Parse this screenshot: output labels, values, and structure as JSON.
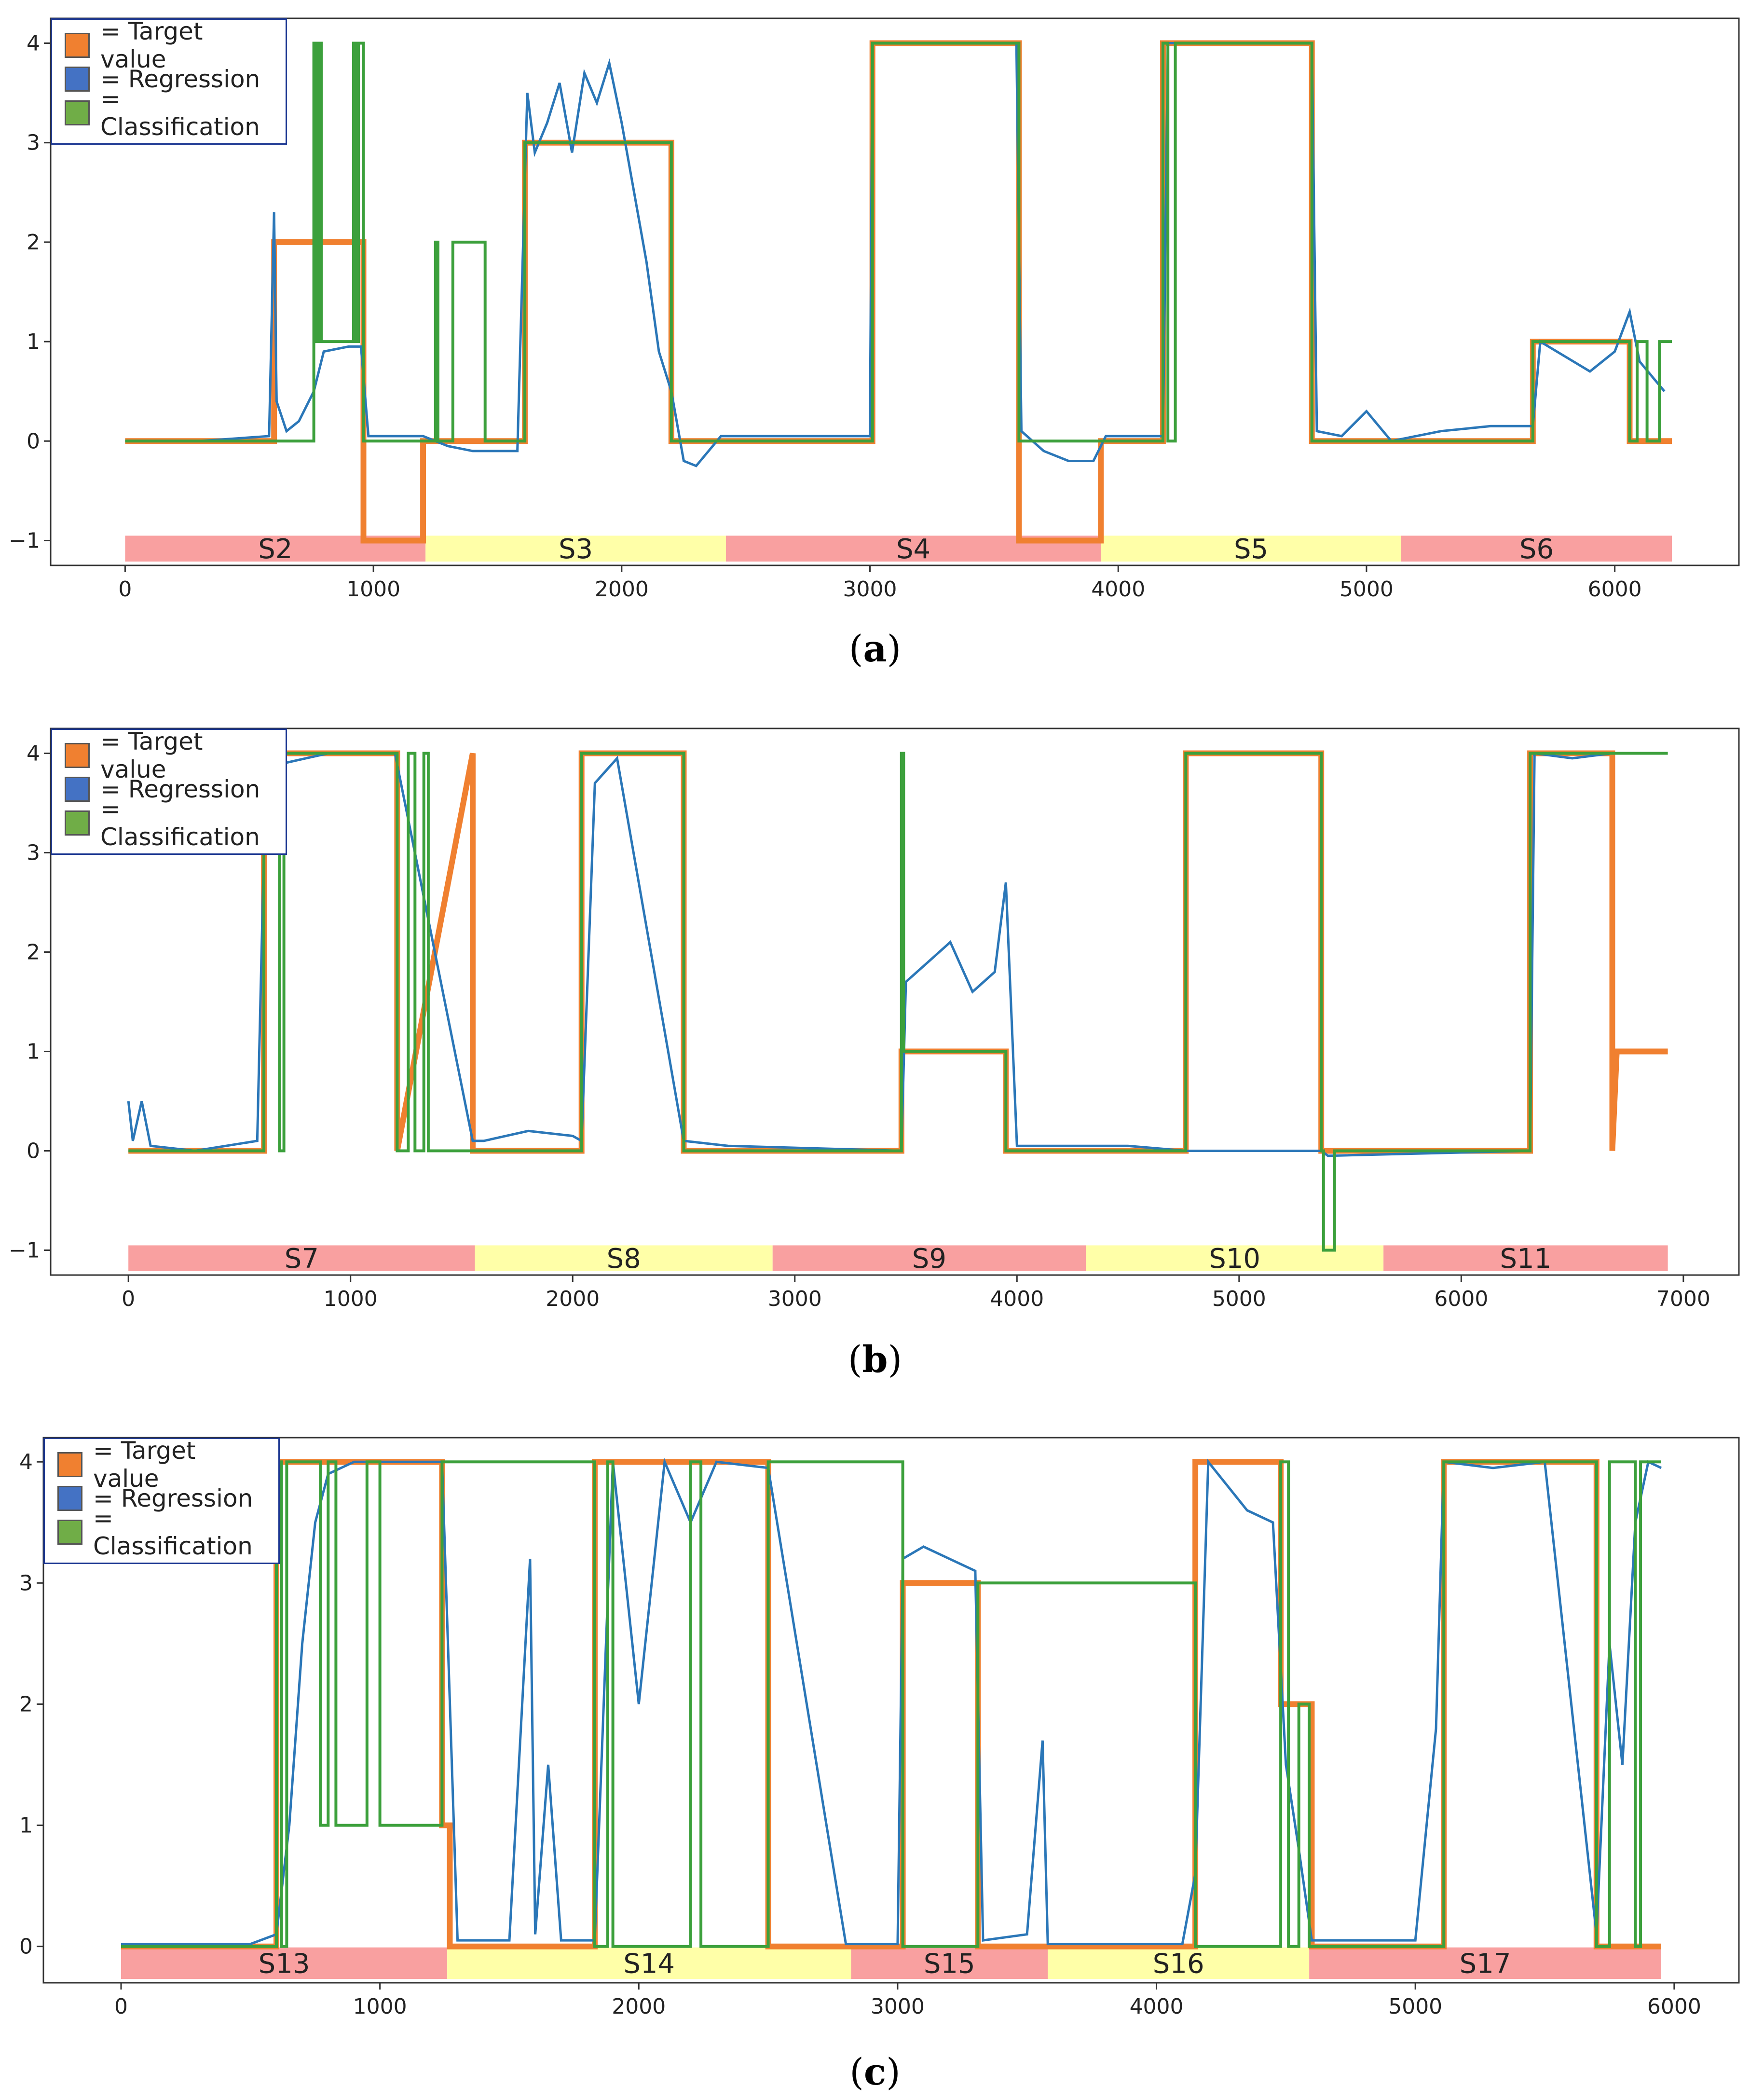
{
  "legend": {
    "target_label": "= Target value",
    "regression_label": "= Regression",
    "classification_label": "= Classification"
  },
  "colors": {
    "target": "#f08030",
    "regression": "#2b77b8",
    "classification": "#3ca03c",
    "session_red": "#f9a0a0",
    "session_yellow": "#ffffa8"
  },
  "panels": [
    {
      "caption_letter": "a",
      "chart_data": {
        "type": "line",
        "xlim": [
          -300,
          6500
        ],
        "ylim": [
          -1.25,
          4.25
        ],
        "xticks": [
          0,
          1000,
          2000,
          3000,
          4000,
          5000,
          6000
        ],
        "yticks": [
          -1,
          0,
          1,
          2,
          3,
          4
        ],
        "sessions": [
          {
            "label": "S2",
            "start": 0,
            "end": 1210,
            "color": "red"
          },
          {
            "label": "S3",
            "start": 1210,
            "end": 2420,
            "color": "yellow"
          },
          {
            "label": "S4",
            "start": 2420,
            "end": 3930,
            "color": "red"
          },
          {
            "label": "S5",
            "start": 3930,
            "end": 5140,
            "color": "yellow"
          },
          {
            "label": "S6",
            "start": 5140,
            "end": 6230,
            "color": "red"
          }
        ],
        "series": [
          {
            "name": "Target value",
            "x": [
              0,
              600,
              600,
              960,
              960,
              1200,
              1200,
              1610,
              1610,
              2200,
              2200,
              3010,
              3010,
              3600,
              3600,
              3930,
              3930,
              4180,
              4180,
              4780,
              4780,
              5670,
              5670,
              6060,
              6060,
              6230
            ],
            "y": [
              0,
              0,
              2,
              2,
              -1,
              -1,
              0,
              0,
              3,
              3,
              0,
              0,
              4,
              4,
              -1,
              -1,
              0,
              0,
              4,
              4,
              0,
              0,
              1,
              1,
              0,
              0
            ]
          },
          {
            "name": "Regression",
            "x": [
              0,
              300,
              580,
              600,
              610,
              650,
              700,
              760,
              800,
              900,
              950,
              980,
              1050,
              1200,
              1300,
              1400,
              1580,
              1620,
              1650,
              1700,
              1750,
              1800,
              1850,
              1900,
              1950,
              2000,
              2050,
              2100,
              2150,
              2200,
              2250,
              2300,
              2400,
              2500,
              2700,
              3000,
              3010,
              3100,
              3300,
              3590,
              3610,
              3700,
              3800,
              3900,
              3950,
              4180,
              4200,
              4400,
              4780,
              4800,
              4900,
              5000,
              5100,
              5300,
              5500,
              5670,
              5700,
              5800,
              5900,
              6000,
              6060,
              6100,
              6200
            ],
            "y": [
              0,
              0,
              0.05,
              2.3,
              0.4,
              0.1,
              0.2,
              0.5,
              0.9,
              0.95,
              0.95,
              0.05,
              0.05,
              0.05,
              -0.05,
              -0.1,
              -0.1,
              3.5,
              2.9,
              3.2,
              3.6,
              2.9,
              3.7,
              3.4,
              3.8,
              3.2,
              2.5,
              1.8,
              0.9,
              0.5,
              -0.2,
              -0.25,
              0.05,
              0.05,
              0.05,
              0.05,
              4,
              4,
              4,
              4,
              0.1,
              -0.1,
              -0.2,
              -0.2,
              0.05,
              0.05,
              4,
              4,
              4,
              0.1,
              0.05,
              0.3,
              0.0,
              0.1,
              0.15,
              0.15,
              1,
              0.85,
              0.7,
              0.9,
              1.3,
              0.8,
              0.5
            ]
          },
          {
            "name": "Classification",
            "x": [
              0,
              760,
              760,
              770,
              770,
              780,
              780,
              790,
              790,
              920,
              920,
              930,
              930,
              940,
              940,
              960,
              960,
              1250,
              1250,
              1260,
              1260,
              1320,
              1320,
              1450,
              1450,
              1610,
              1610,
              2200,
              2200,
              3010,
              3010,
              3600,
              3600,
              4180,
              4180,
              4200,
              4200,
              4230,
              4230,
              4780,
              4780,
              5670,
              5670,
              6060,
              6060,
              6090,
              6090,
              6130,
              6130,
              6180,
              6180,
              6230
            ],
            "y": [
              0,
              0,
              4,
              4,
              1,
              1,
              4,
              4,
              1,
              1,
              4,
              4,
              1,
              1,
              4,
              4,
              0,
              0,
              2,
              2,
              0,
              0,
              2,
              2,
              0,
              0,
              3,
              3,
              0,
              0,
              4,
              4,
              0,
              0,
              4,
              4,
              0,
              0,
              4,
              4,
              0,
              0,
              1,
              1,
              0,
              0,
              1,
              1,
              0,
              0,
              1,
              1
            ]
          }
        ]
      }
    },
    {
      "caption_letter": "b",
      "chart_data": {
        "type": "line",
        "xlim": [
          -350,
          7250
        ],
        "ylim": [
          -1.25,
          4.25
        ],
        "xticks": [
          0,
          1000,
          2000,
          3000,
          4000,
          5000,
          6000,
          7000
        ],
        "yticks": [
          -1,
          0,
          1,
          2,
          3,
          4
        ],
        "sessions": [
          {
            "label": "S7",
            "start": 0,
            "end": 1560,
            "color": "red"
          },
          {
            "label": "S8",
            "start": 1560,
            "end": 2900,
            "color": "yellow"
          },
          {
            "label": "S9",
            "start": 2900,
            "end": 4310,
            "color": "red"
          },
          {
            "label": "S10",
            "start": 4310,
            "end": 5650,
            "color": "yellow"
          },
          {
            "label": "S11",
            "start": 5650,
            "end": 6930,
            "color": "red"
          }
        ],
        "series": [
          {
            "name": "Target value",
            "x": [
              0,
              610,
              610,
              1210,
              1210,
              1550,
              1550,
              2040,
              2040,
              2500,
              2500,
              3480,
              3480,
              3950,
              3950,
              4760,
              4760,
              5370,
              5370,
              6310,
              6310,
              6680,
              6680,
              6700,
              6700,
              6930
            ],
            "y": [
              0,
              0,
              4,
              4,
              0,
              4,
              0,
              0,
              4,
              4,
              0,
              0,
              1,
              1,
              0,
              0,
              4,
              4,
              0,
              0,
              4,
              4,
              0,
              1,
              1,
              1
            ]
          },
          {
            "name": "Regression",
            "x": [
              0,
              20,
              60,
              100,
              300,
              580,
              620,
              700,
              900,
              1200,
              1550,
              1600,
              1800,
              2000,
              2040,
              2100,
              2200,
              2500,
              2700,
              3480,
              3500,
              3600,
              3700,
              3800,
              3900,
              3950,
              4000,
              4500,
              4760,
              5370,
              5400,
              6310,
              6330,
              6500,
              6680
            ],
            "y": [
              0.5,
              0.1,
              0.5,
              0.05,
              0,
              0.1,
              4,
              3.9,
              4,
              4,
              0.1,
              0.1,
              0.2,
              0.15,
              0.1,
              3.7,
              3.95,
              0.1,
              0.05,
              0,
              1.7,
              1.9,
              2.1,
              1.6,
              1.8,
              2.7,
              0.05,
              0.05,
              0,
              0,
              -0.05,
              0,
              4,
              3.95,
              4
            ]
          },
          {
            "name": "Classification",
            "x": [
              0,
              610,
              610,
              680,
              680,
              700,
              700,
              1210,
              1210,
              1260,
              1260,
              1290,
              1290,
              1330,
              1330,
              1350,
              1350,
              1550,
              1550,
              2040,
              2040,
              2500,
              2500,
              3480,
              3480,
              3490,
              3490,
              3950,
              3950,
              4760,
              4760,
              5370,
              5370,
              5380,
              5380,
              5430,
              5430,
              6310,
              6310,
              6930
            ],
            "y": [
              0,
              0,
              4,
              4,
              0,
              0,
              4,
              4,
              0,
              0,
              4,
              4,
              0,
              0,
              4,
              4,
              0,
              0,
              0,
              0,
              4,
              4,
              0,
              0,
              4,
              4,
              1,
              1,
              0,
              0,
              4,
              4,
              0,
              0,
              -1,
              -1,
              0,
              0,
              4,
              4
            ]
          }
        ]
      }
    },
    {
      "caption_letter": "c",
      "chart_data": {
        "type": "line",
        "xlim": [
          -300,
          6250
        ],
        "ylim": [
          -0.3,
          4.2
        ],
        "xticks": [
          0,
          1000,
          2000,
          3000,
          4000,
          5000,
          6000
        ],
        "yticks": [
          0,
          1,
          2,
          3,
          4
        ],
        "sessions": [
          {
            "label": "S13",
            "start": 0,
            "end": 1260,
            "color": "red"
          },
          {
            "label": "S14",
            "start": 1260,
            "end": 2820,
            "color": "yellow"
          },
          {
            "label": "S15",
            "start": 2820,
            "end": 3580,
            "color": "red"
          },
          {
            "label": "S16",
            "start": 3580,
            "end": 4590,
            "color": "yellow"
          },
          {
            "label": "S17",
            "start": 4590,
            "end": 5950,
            "color": "red"
          }
        ],
        "series": [
          {
            "name": "Target value",
            "x": [
              0,
              600,
              600,
              1240,
              1240,
              1270,
              1270,
              1830,
              1830,
              2500,
              2500,
              3020,
              3020,
              3310,
              3310,
              4150,
              4150,
              4480,
              4480,
              4600,
              4600,
              5110,
              5110,
              5700,
              5700,
              5950
            ],
            "y": [
              0,
              0,
              4,
              4,
              1,
              1,
              0,
              0,
              4,
              4,
              0,
              0,
              3,
              3,
              0,
              0,
              4,
              4,
              2,
              2,
              0,
              0,
              4,
              4,
              0,
              0
            ]
          },
          {
            "name": "Regression",
            "x": [
              0,
              500,
              600,
              650,
              700,
              750,
              800,
              900,
              1240,
              1300,
              1500,
              1580,
              1600,
              1650,
              1700,
              1830,
              1900,
              2000,
              2100,
              2200,
              2300,
              2500,
              2800,
              3000,
              3020,
              3100,
              3200,
              3300,
              3330,
              3500,
              3560,
              3580,
              3700,
              4100,
              4150,
              4200,
              4350,
              4450,
              4500,
              4550,
              4600,
              5000,
              5080,
              5110,
              5300,
              5500,
              5700,
              5750,
              5800,
              5850,
              5900,
              5950
            ],
            "y": [
              0.02,
              0.02,
              0.1,
              1.0,
              2.5,
              3.5,
              3.9,
              4,
              4,
              0.05,
              0.05,
              3.2,
              0.1,
              1.5,
              0.05,
              0.05,
              4,
              2,
              4,
              3.5,
              4,
              3.95,
              0.02,
              0.02,
              3.2,
              3.3,
              3.2,
              3.1,
              0.05,
              0.1,
              1.7,
              0.02,
              0.02,
              0.02,
              0.6,
              4,
              3.6,
              3.5,
              1.5,
              0.8,
              0.05,
              0.05,
              1.8,
              4,
              3.95,
              4,
              0.1,
              2.5,
              1.5,
              3.5,
              4,
              3.95
            ]
          },
          {
            "name": "Classification",
            "x": [
              0,
              600,
              600,
              620,
              620,
              640,
              640,
              770,
              770,
              800,
              800,
              830,
              830,
              950,
              950,
              1000,
              1000,
              1240,
              1240,
              1830,
              1830,
              1880,
              1880,
              1900,
              1900,
              2200,
              2200,
              2240,
              2240,
              2500,
              2500,
              3020,
              3020,
              3310,
              3310,
              4150,
              4150,
              4480,
              4480,
              4510,
              4510,
              4550,
              4550,
              4590,
              4590,
              5110,
              5110,
              5700,
              5700,
              5750,
              5750,
              5850,
              5850,
              5870,
              5870,
              5950
            ],
            "y": [
              0,
              0,
              4,
              4,
              0,
              0,
              4,
              4,
              1,
              1,
              4,
              4,
              1,
              1,
              4,
              4,
              1,
              1,
              4,
              4,
              0,
              0,
              4,
              4,
              0,
              0,
              4,
              4,
              0,
              0,
              4,
              4,
              0,
              0,
              3,
              3,
              0,
              0,
              4,
              4,
              0,
              0,
              2,
              2,
              0,
              0,
              4,
              4,
              0,
              0,
              4,
              4,
              0,
              0,
              4,
              4
            ]
          }
        ]
      }
    }
  ]
}
